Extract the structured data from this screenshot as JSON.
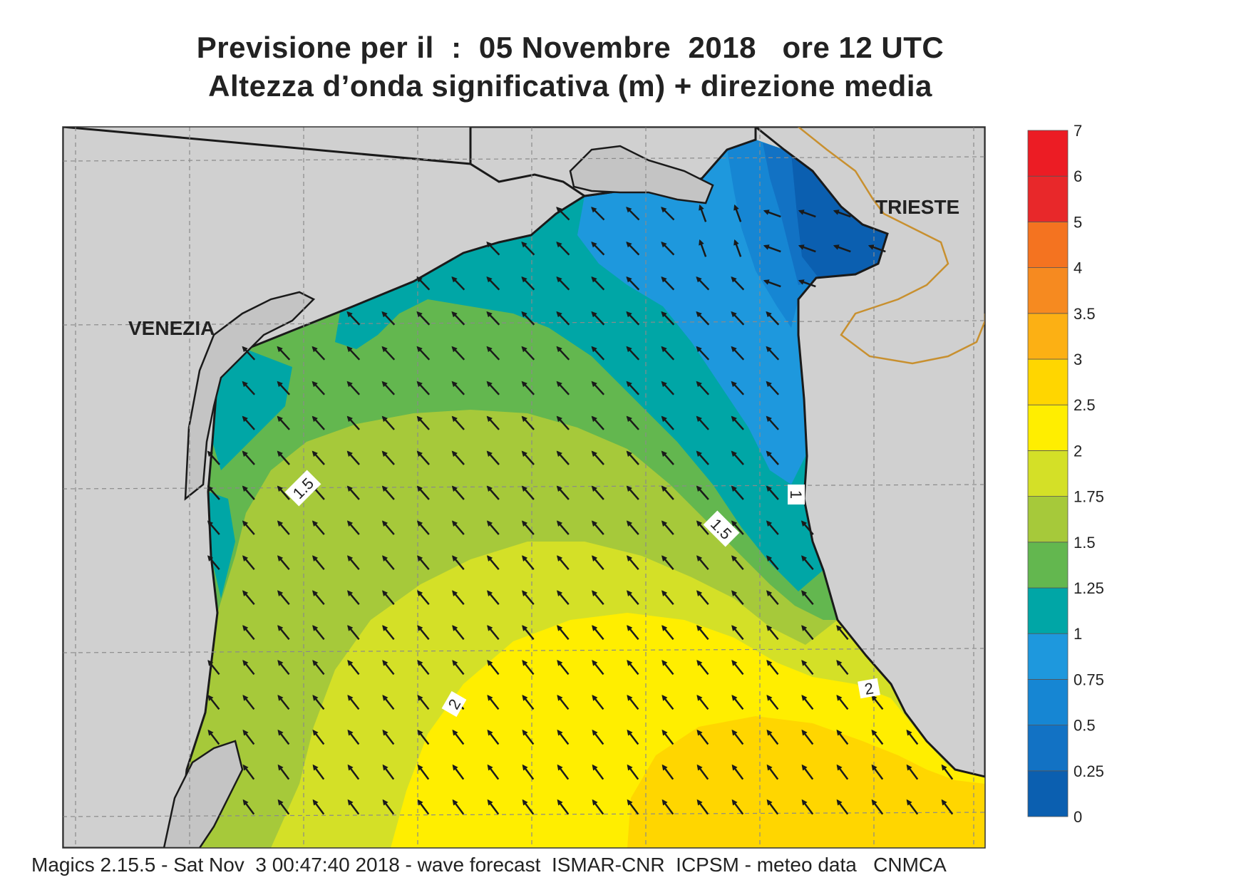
{
  "title": {
    "line1": "Previsione per il  :  05 Novembre  2018   ore 12 UTC",
    "line2": "Altezza d’onda significativa (m) + direzione media"
  },
  "place_labels": {
    "venezia": "VENEZIA",
    "trieste": "TRIESTE"
  },
  "contour_labels": {
    "c1": "1.5",
    "c2": "1.5",
    "c3": "1",
    "c4": "2",
    "c5": "2"
  },
  "colorbar": {
    "levels": [
      {
        "label": "0",
        "color": "#0b5fb0"
      },
      {
        "label": "0.25",
        "color": "#1272c4"
      },
      {
        "label": "0.5",
        "color": "#1686d3"
      },
      {
        "label": "0.75",
        "color": "#1e98dd"
      },
      {
        "label": "1",
        "color": "#00a6a6"
      },
      {
        "label": "1.25",
        "color": "#63b74f"
      },
      {
        "label": "1.5",
        "color": "#a6c93a"
      },
      {
        "label": "1.75",
        "color": "#d4e027"
      },
      {
        "label": "2",
        "color": "#ffee00"
      },
      {
        "label": "2.5",
        "color": "#ffd600"
      },
      {
        "label": "3",
        "color": "#fcb014"
      },
      {
        "label": "3.5",
        "color": "#f68a20"
      },
      {
        "label": "4",
        "color": "#f47320"
      },
      {
        "label": "5",
        "color": "#e8282a"
      },
      {
        "label": "6",
        "color": "#ec1c24"
      },
      {
        "label": "7",
        "color": "#ed1775"
      }
    ]
  },
  "colors": {
    "land": "#d0d0d0",
    "coast": "#1a1a1a",
    "border": "#c8902f",
    "grid": "#8a8a8a",
    "arrow": "#1a1a1a"
  },
  "footer": "Magics 2.15.5 - Sat Nov  3 00:47:40 2018 - wave forecast  ISMAR-CNR  ICPSM - meteo data   CNMCA"
}
